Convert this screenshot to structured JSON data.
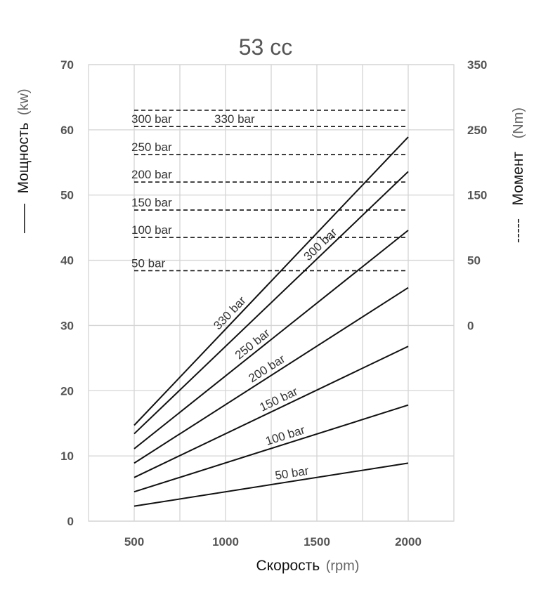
{
  "chart_data": {
    "type": "line",
    "title": "53 cc",
    "xlabel": {
      "main": "Скорость",
      "unit": "(rpm)"
    },
    "ylabel_left": {
      "main": "Мощность",
      "unit": "(kw)",
      "legend_symbol": "——"
    },
    "ylabel_right": {
      "main": "Момент",
      "unit": "(Nm)",
      "legend_symbol": "-----"
    },
    "xlim": [
      250,
      2250
    ],
    "ylim_left": [
      0,
      70
    ],
    "x_ticks": [
      "500",
      "1000",
      "1500",
      "2000"
    ],
    "x_tick_values": [
      500,
      1000,
      1500,
      2000
    ],
    "y_left_ticks": [
      "0",
      "10",
      "20",
      "30",
      "40",
      "50",
      "60",
      "70"
    ],
    "y_left_tick_values": [
      0,
      10,
      20,
      30,
      40,
      50,
      60,
      70
    ],
    "y_right_ticks": [
      "0",
      "50",
      "150",
      "250",
      "350"
    ],
    "y_right_tick_values": [
      0,
      50,
      150,
      250,
      350
    ],
    "grid": true,
    "power_series": [
      {
        "name": "50 bar",
        "x": [
          500,
          2000
        ],
        "y": [
          2.3,
          8.9
        ]
      },
      {
        "name": "100 bar",
        "x": [
          500,
          2000
        ],
        "y": [
          4.5,
          17.8
        ]
      },
      {
        "name": "150 bar",
        "x": [
          500,
          2000
        ],
        "y": [
          6.7,
          26.8
        ]
      },
      {
        "name": "200 bar",
        "x": [
          500,
          2000
        ],
        "y": [
          8.9,
          35.8
        ]
      },
      {
        "name": "250 bar",
        "x": [
          500,
          2000
        ],
        "y": [
          11.1,
          44.6
        ]
      },
      {
        "name": "300 bar",
        "x": [
          500,
          2000
        ],
        "y": [
          13.4,
          53.6
        ]
      },
      {
        "name": "330 bar",
        "x": [
          500,
          2000
        ],
        "y": [
          14.7,
          58.9
        ]
      }
    ],
    "torque_series": [
      {
        "name": "50 bar",
        "x": [
          500,
          2000
        ],
        "y": 42
      },
      {
        "name": "100 bar",
        "x": [
          500,
          2000
        ],
        "y": 85
      },
      {
        "name": "150 bar",
        "x": [
          500,
          2000
        ],
        "y": 127
      },
      {
        "name": "200 bar",
        "x": [
          500,
          2000
        ],
        "y": 170
      },
      {
        "name": "250 bar",
        "x": [
          500,
          2000
        ],
        "y": 212
      },
      {
        "name": "300 bar",
        "x": [
          500,
          2000
        ],
        "y": 255
      },
      {
        "name": "330 bar",
        "x": [
          500,
          2000
        ],
        "y": 280
      }
    ],
    "colors": {
      "line": "#111111",
      "grid": "#d4d4d4",
      "text": "#555555"
    }
  }
}
